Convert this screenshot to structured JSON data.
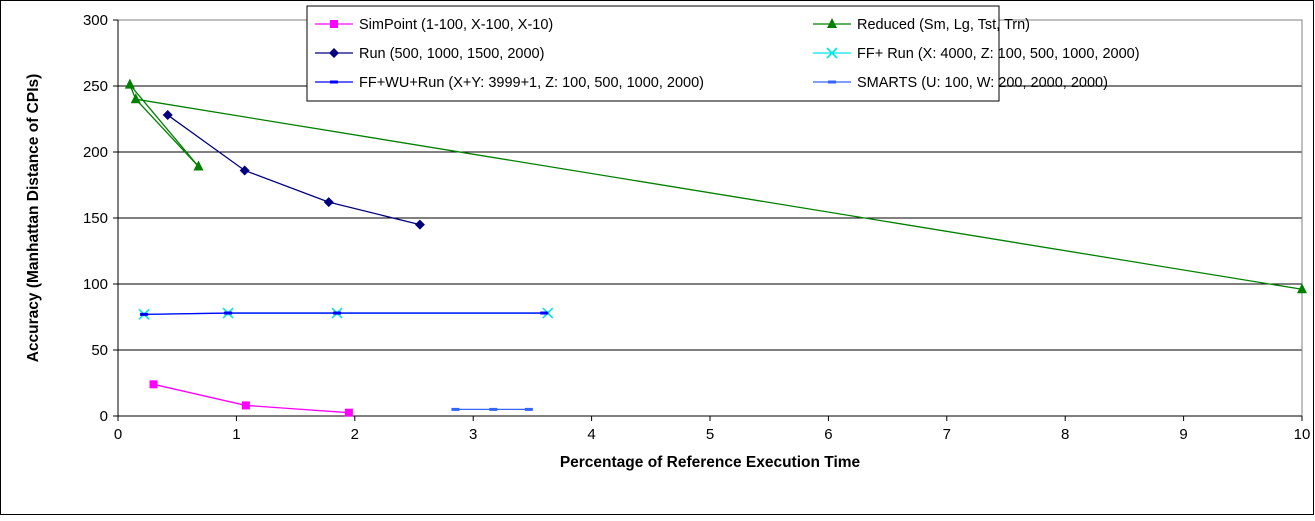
{
  "chart_data": {
    "type": "scatter",
    "title": "",
    "xlabel": "Percentage of Reference Execution Time",
    "ylabel": "Accuracy (Manhattan Distance of CPIs)",
    "xlim": [
      0,
      10
    ],
    "ylim": [
      0,
      300
    ],
    "x_ticks": [
      0,
      1,
      2,
      3,
      4,
      5,
      6,
      7,
      8,
      9,
      10
    ],
    "y_ticks": [
      0,
      50,
      100,
      150,
      200,
      250,
      300
    ],
    "grid": "horizontal",
    "legend_position": "top-right",
    "series": [
      {
        "name": "SimPoint (1-100, X-100, X-10)",
        "color": "#ff00ff",
        "marker": "square",
        "points": [
          [
            0.3,
            24
          ],
          [
            1.08,
            8
          ],
          [
            1.95,
            2.5
          ]
        ]
      },
      {
        "name": "Reduced (Sm, Lg,  Tst, Trn)",
        "color": "#008000",
        "marker": "triangle",
        "points": [
          [
            0.1,
            251
          ],
          [
            0.15,
            240
          ],
          [
            0.68,
            189
          ],
          [
            10.0,
            96
          ]
        ],
        "segments": [
          [
            0,
            1
          ],
          [
            1,
            2
          ],
          [
            0,
            2
          ],
          [
            1,
            3
          ]
        ]
      },
      {
        "name": "Run (500, 1000, 1500, 2000)",
        "color": "#000080",
        "marker": "diamond",
        "points": [
          [
            0.42,
            228
          ],
          [
            1.07,
            186
          ],
          [
            1.78,
            162
          ],
          [
            2.55,
            145
          ]
        ]
      },
      {
        "name": "FF+ Run (X: 4000, Z: 100, 500, 1000, 2000)",
        "color": "#00e5e5",
        "marker": "x",
        "points": [
          [
            0.22,
            77
          ],
          [
            0.93,
            78
          ],
          [
            1.85,
            78
          ],
          [
            3.63,
            78
          ]
        ]
      },
      {
        "name": "FF+WU+Run (X+Y: 3999+1, Z: 100, 500, 1000, 2000)",
        "color": "#0000ff",
        "marker": "dash",
        "points": [
          [
            0.22,
            77
          ],
          [
            0.93,
            78
          ],
          [
            1.85,
            78
          ],
          [
            3.6,
            78
          ]
        ]
      },
      {
        "name": "SMARTS (U: 100, W: 200, 2000, 2000)",
        "color": "#3366ff",
        "marker": "dash",
        "points": [
          [
            2.85,
            5
          ],
          [
            3.17,
            5
          ],
          [
            3.47,
            5
          ]
        ]
      }
    ]
  }
}
